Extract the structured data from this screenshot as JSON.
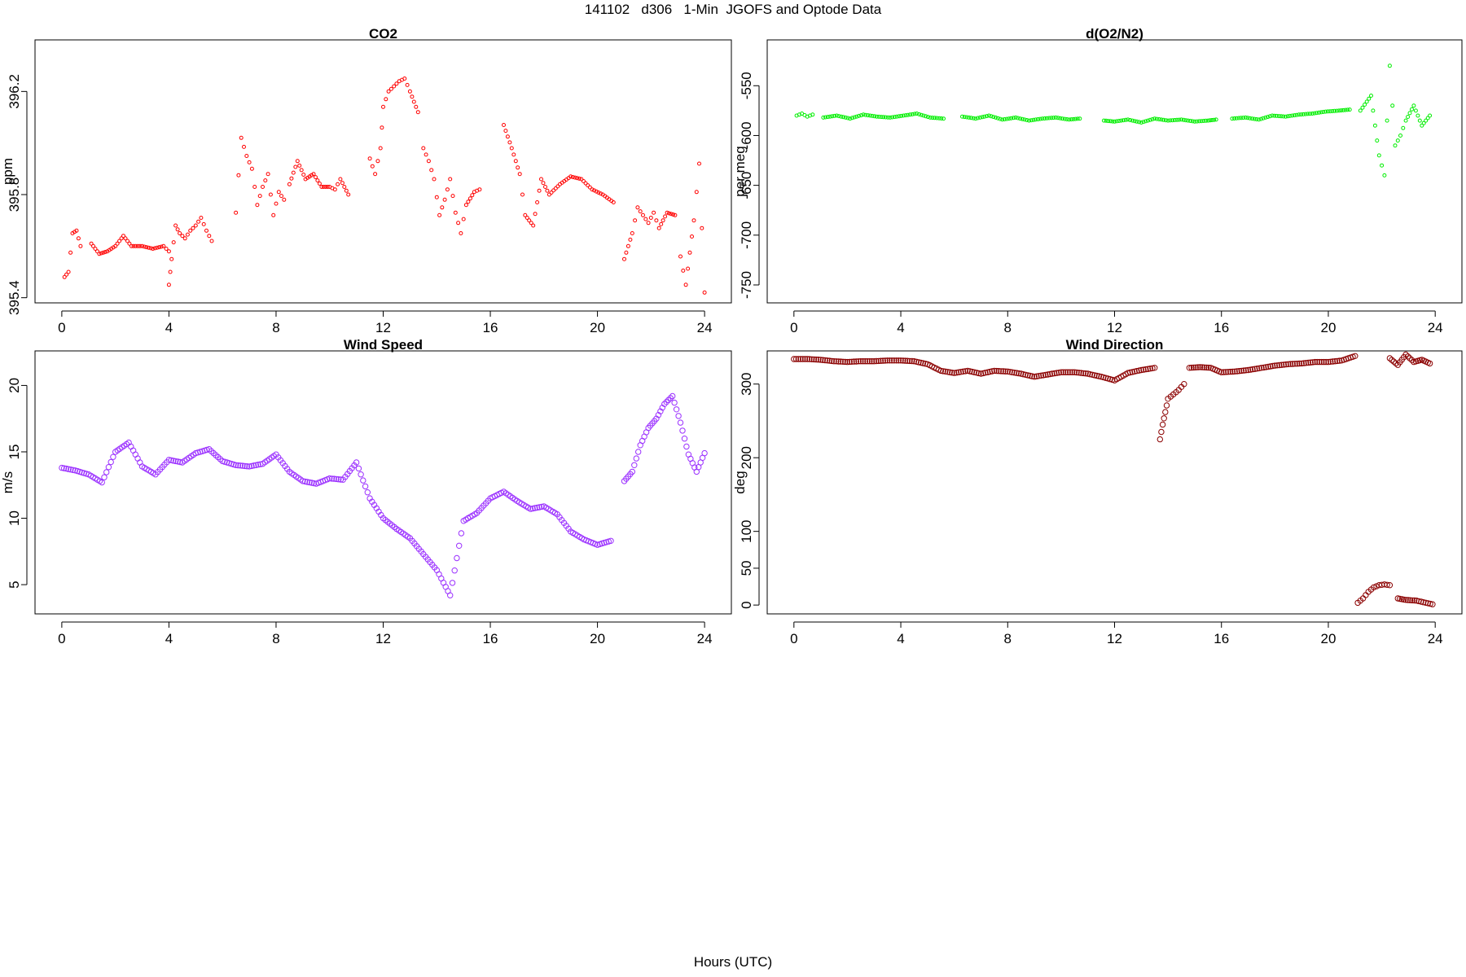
{
  "page": {
    "title": "141102   d306   1-Min  JGOFS and Optode Data",
    "xlabel": "Hours (UTC)"
  },
  "chart_data": [
    {
      "type": "scatter",
      "title": "CO2",
      "ylabel": "ppm",
      "color": "#ff0000",
      "marker": "open-circle",
      "xlim": [
        -1,
        25
      ],
      "ylim": [
        395.38,
        396.4
      ],
      "xticks": [
        0,
        4,
        8,
        12,
        16,
        20,
        24
      ],
      "yticks": [
        395.4,
        395.8,
        396.2
      ],
      "ytick_labels": [
        "395.4",
        "395.8",
        "396.2"
      ],
      "series": [
        {
          "x": [
            0.1,
            0.25,
            0.4,
            0.55,
            0.7
          ],
          "y": [
            395.48,
            395.5,
            395.65,
            395.66,
            395.6
          ]
        },
        {
          "x": [
            1.1,
            1.4,
            1.7,
            2.0,
            2.3,
            2.6,
            3.0,
            3.4,
            3.8,
            4.0
          ],
          "y": [
            395.61,
            395.57,
            395.58,
            395.6,
            395.64,
            395.6,
            395.6,
            395.59,
            395.6,
            395.58
          ]
        },
        {
          "x": [
            4.0,
            4.1,
            4.25,
            4.4,
            4.6,
            4.8,
            5.0,
            5.2,
            5.4,
            5.6
          ],
          "y": [
            395.45,
            395.55,
            395.68,
            395.65,
            395.63,
            395.66,
            395.68,
            395.71,
            395.66,
            395.62
          ]
        },
        {
          "x": [
            6.5,
            6.7,
            6.9,
            7.1,
            7.3,
            7.5,
            7.7,
            7.9,
            8.1,
            8.3
          ],
          "y": [
            395.73,
            396.02,
            395.95,
            395.9,
            395.76,
            395.83,
            395.88,
            395.72,
            395.81,
            395.78
          ]
        },
        {
          "x": [
            8.5,
            8.8,
            9.1,
            9.4,
            9.7,
            10.0,
            10.2,
            10.4,
            10.7
          ],
          "y": [
            395.84,
            395.93,
            395.86,
            395.88,
            395.83,
            395.83,
            395.82,
            395.86,
            395.8
          ]
        },
        {
          "x": [
            11.5,
            11.7,
            11.9,
            12.0,
            12.2,
            12.4,
            12.6,
            12.8,
            13.0,
            13.3
          ],
          "y": [
            395.94,
            395.88,
            395.98,
            396.14,
            396.2,
            396.22,
            396.24,
            396.25,
            396.2,
            396.12
          ]
        },
        {
          "x": [
            13.5,
            13.7,
            13.9,
            14.1,
            14.3,
            14.5,
            14.7,
            14.9,
            15.1,
            15.4,
            15.6
          ],
          "y": [
            395.98,
            395.93,
            395.86,
            395.72,
            395.78,
            395.86,
            395.73,
            395.65,
            395.76,
            395.81,
            395.82
          ]
        },
        {
          "x": [
            16.5,
            16.8,
            17.1,
            17.3,
            17.6,
            17.9,
            18.2,
            18.6,
            19.0,
            19.4,
            19.8,
            20.2,
            20.6
          ],
          "y": [
            396.07,
            395.98,
            395.88,
            395.72,
            395.68,
            395.86,
            395.8,
            395.84,
            395.87,
            395.86,
            395.82,
            395.8,
            395.77
          ]
        },
        {
          "x": [
            21.0,
            21.3,
            21.5,
            21.7,
            21.9,
            22.1,
            22.3,
            22.6,
            22.9
          ],
          "y": [
            395.55,
            395.65,
            395.75,
            395.72,
            395.69,
            395.73,
            395.67,
            395.73,
            395.72
          ]
        },
        {
          "x": [
            23.1,
            23.3,
            23.6,
            23.8,
            24.0
          ],
          "y": [
            395.56,
            395.45,
            395.7,
            395.92,
            395.42
          ]
        }
      ]
    },
    {
      "type": "scatter",
      "title": "d(O2/N2)",
      "ylabel": "per meg",
      "color": "#00ee00",
      "marker": "open-circle",
      "xlim": [
        -1,
        25
      ],
      "ylim": [
        -768,
        -504
      ],
      "xticks": [
        0,
        4,
        8,
        12,
        16,
        20,
        24
      ],
      "yticks": [
        -750,
        -700,
        -650,
        -600,
        -550
      ],
      "ytick_labels": [
        "-750",
        "-700",
        "-650",
        "-600",
        "-550"
      ],
      "series": [
        {
          "x": [
            0.1,
            0.3,
            0.5,
            0.7
          ],
          "y": [
            -580,
            -578,
            -581,
            -579
          ]
        },
        {
          "x": [
            1.1,
            1.6,
            2.1,
            2.6,
            3.1,
            3.6,
            4.1,
            4.6,
            5.1,
            5.6
          ],
          "y": [
            -582,
            -580,
            -583,
            -579,
            -581,
            -582,
            -580,
            -578,
            -582,
            -583
          ]
        },
        {
          "x": [
            6.3,
            6.8,
            7.3,
            7.8,
            8.3,
            8.8,
            9.3,
            9.8,
            10.3,
            10.7
          ],
          "y": [
            -581,
            -583,
            -580,
            -584,
            -582,
            -585,
            -583,
            -582,
            -584,
            -583
          ]
        },
        {
          "x": [
            11.6,
            12.0,
            12.5,
            13.0,
            13.5,
            14.0,
            14.5,
            15.0,
            15.5,
            15.8
          ],
          "y": [
            -585,
            -586,
            -584,
            -587,
            -583,
            -585,
            -584,
            -586,
            -585,
            -584
          ]
        },
        {
          "x": [
            16.4,
            16.9,
            17.4,
            17.9,
            18.4,
            18.9,
            19.4,
            19.9,
            20.4,
            20.8
          ],
          "y": [
            -583,
            -582,
            -584,
            -580,
            -581,
            -579,
            -578,
            -576,
            -575,
            -574
          ]
        },
        {
          "x": [
            21.2,
            21.6,
            21.9,
            22.1,
            22.3,
            22.5,
            22.7,
            22.9,
            23.2,
            23.5,
            23.8
          ],
          "y": [
            -575,
            -560,
            -620,
            -640,
            -530,
            -610,
            -600,
            -585,
            -570,
            -590,
            -580
          ]
        }
      ]
    },
    {
      "type": "scatter",
      "title": "Wind Speed",
      "ylabel": "m/s",
      "color": "#9b30ff",
      "marker": "open-circle",
      "xlim": [
        -1,
        25
      ],
      "ylim": [
        2.8,
        22.6
      ],
      "xticks": [
        0,
        4,
        8,
        12,
        16,
        20,
        24
      ],
      "yticks": [
        5,
        10,
        15,
        20
      ],
      "ytick_labels": [
        "5",
        "10",
        "15",
        "20"
      ],
      "series": [
        {
          "x": [
            0,
            0.5,
            1,
            1.5,
            2,
            2.5,
            3,
            3.5,
            4,
            4.5,
            5,
            5.5,
            6,
            6.5,
            7,
            7.5,
            8,
            8.5,
            9,
            9.5,
            10,
            10.5,
            11,
            11.5,
            12,
            12.5,
            13,
            13.5,
            14,
            14.5,
            15,
            15.5,
            16,
            16.5,
            17,
            17.5,
            18,
            18.5,
            19,
            19.5,
            20,
            20.5
          ],
          "y": [
            13.8,
            13.6,
            13.3,
            12.7,
            15.0,
            15.7,
            13.9,
            13.3,
            14.4,
            14.2,
            14.9,
            15.2,
            14.3,
            14.0,
            13.9,
            14.1,
            14.8,
            13.5,
            12.8,
            12.6,
            13.0,
            12.9,
            14.2,
            11.5,
            10.0,
            9.2,
            8.5,
            7.3,
            6.1,
            4.2,
            9.8,
            10.4,
            11.5,
            12.0,
            11.3,
            10.7,
            10.9,
            10.3,
            9.0,
            8.4,
            8.0,
            8.3
          ]
        },
        {
          "x": [
            21,
            21.3,
            21.6,
            21.9,
            22.2,
            22.5,
            22.8,
            23.1,
            23.4,
            23.7,
            24
          ],
          "y": [
            12.8,
            13.5,
            15.5,
            16.8,
            17.5,
            18.6,
            19.2,
            17.2,
            14.8,
            13.5,
            14.9
          ]
        }
      ]
    },
    {
      "type": "scatter",
      "title": "Wind Direction",
      "ylabel": "deg",
      "color": "#8b0000",
      "marker": "open-circle",
      "xlim": [
        -1,
        25
      ],
      "ylim": [
        -12,
        345
      ],
      "xticks": [
        0,
        4,
        8,
        12,
        16,
        20,
        24
      ],
      "yticks": [
        0,
        50,
        100,
        200,
        300
      ],
      "ytick_labels": [
        "0",
        "50",
        "100",
        "200",
        "300"
      ],
      "series": [
        {
          "x": [
            0,
            0.5,
            1,
            1.5,
            2,
            2.5,
            3,
            3.5,
            4,
            4.5,
            5,
            5.5,
            6,
            6.5,
            7,
            7.5,
            8,
            8.5,
            9,
            9.5,
            10,
            10.5,
            11,
            11.5,
            12,
            12.5,
            13,
            13.5
          ],
          "y": [
            334,
            334,
            333,
            331,
            330,
            331,
            331,
            332,
            332,
            331,
            327,
            318,
            315,
            318,
            314,
            318,
            317,
            314,
            310,
            313,
            316,
            316,
            314,
            310,
            305,
            315,
            319,
            322
          ]
        },
        {
          "x": [
            13.7,
            13.8,
            13.9,
            14.0,
            14.2,
            14.4,
            14.6
          ],
          "y": [
            225,
            245,
            262,
            280,
            286,
            292,
            300
          ]
        },
        {
          "x": [
            14.8,
            15.2,
            15.6,
            16,
            16.5,
            17,
            17.5,
            18,
            18.5,
            19,
            19.5,
            20,
            20.5,
            21
          ],
          "y": [
            322,
            323,
            322,
            316,
            317,
            319,
            322,
            325,
            327,
            328,
            330,
            330,
            332,
            338
          ]
        },
        {
          "x": [
            21.1,
            21.3,
            21.5,
            21.7,
            21.9,
            22.1,
            22.3
          ],
          "y": [
            3,
            9,
            18,
            24,
            27,
            28,
            27
          ]
        },
        {
          "x": [
            22.3,
            22.6,
            22.9,
            23.2,
            23.5,
            23.8
          ],
          "y": [
            335,
            326,
            340,
            330,
            333,
            328
          ]
        },
        {
          "x": [
            22.6,
            22.9,
            23.3,
            23.9
          ],
          "y": [
            9,
            7,
            6,
            1
          ]
        }
      ]
    }
  ]
}
